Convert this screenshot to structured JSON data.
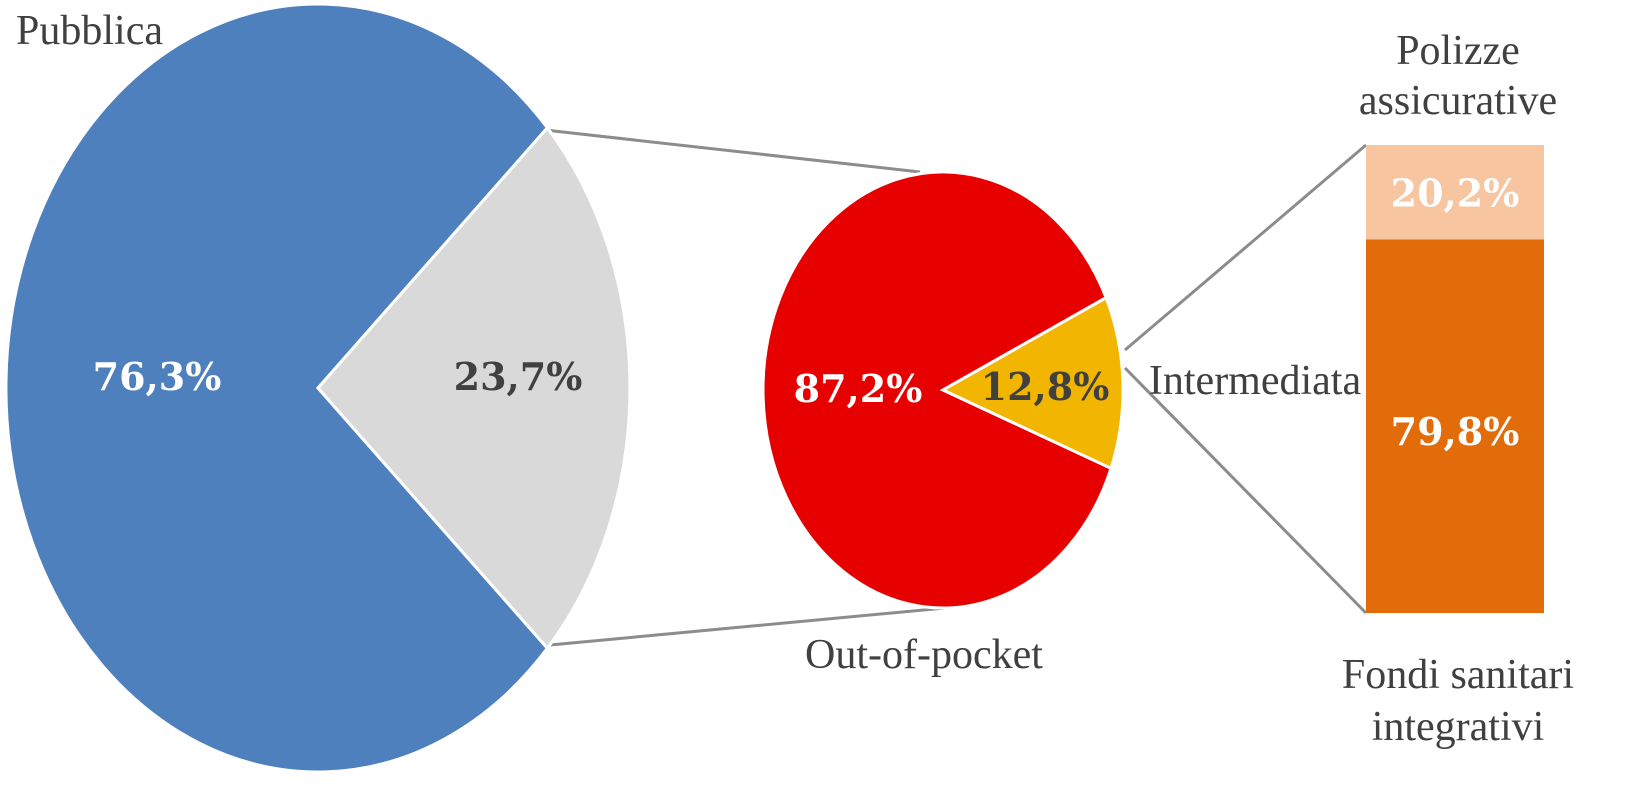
{
  "chart_data": [
    {
      "type": "pie",
      "role": "main",
      "slices": [
        {
          "label": "Pubblica",
          "value": 76.3,
          "display": "76,3%",
          "color": "#4E80BD",
          "text_color": "#FFFFFF"
        },
        {
          "label": "",
          "value": 23.7,
          "display": "23,7%",
          "color": "#D9D9D9",
          "text_color": "#404040"
        }
      ]
    },
    {
      "type": "pie",
      "role": "secondary",
      "slices": [
        {
          "label": "Out-of-pocket",
          "value": 87.2,
          "display": "87,2%",
          "color": "#E60000",
          "text_color": "#FFFFFF"
        },
        {
          "label": "Intermediata",
          "value": 12.8,
          "display": "12,8%",
          "color": "#F2B600",
          "text_color": "#404040"
        }
      ]
    },
    {
      "type": "bar",
      "stacked": true,
      "role": "breakdown",
      "segments": [
        {
          "label": "Polizze assicurative",
          "value": 20.2,
          "display": "20,2%",
          "color": "#F7C59F",
          "text_color": "#FFFFFF"
        },
        {
          "label": "Fondi sanitari integrativi",
          "value": 79.8,
          "display": "79,8%",
          "color": "#E36C0A",
          "text_color": "#FFFFFF"
        }
      ]
    }
  ],
  "labels": {
    "pubblica": "Pubblica",
    "out_of_pocket": "Out-of-pocket",
    "intermediata": "Intermediata",
    "polizze_line1": "Polizze",
    "polizze_line2": "assicurative",
    "fondi_line1": "Fondi sanitari",
    "fondi_line2": "integrativi"
  },
  "connector_color": "#8C8C8C"
}
